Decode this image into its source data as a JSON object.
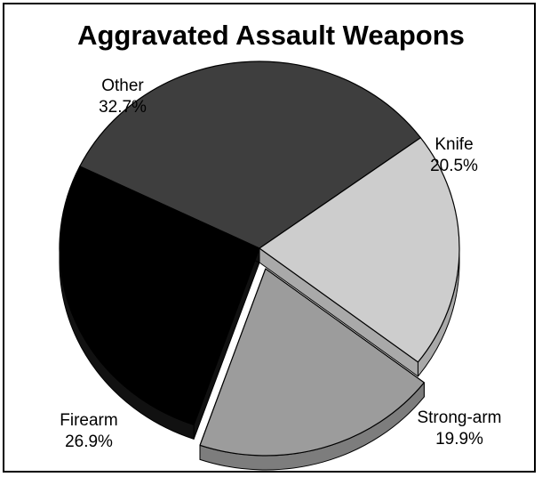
{
  "chart_data": {
    "type": "pie",
    "title": "Aggravated Assault Weapons",
    "slices": [
      {
        "label": "Other",
        "value": 32.7,
        "value_text": "32.7%",
        "color": "#3e3e3e",
        "side_color": "#262626"
      },
      {
        "label": "Knife",
        "value": 20.5,
        "value_text": "20.5%",
        "color": "#cdcdcd",
        "side_color": "#a9a9a9"
      },
      {
        "label": "Strong-arm",
        "value": 19.9,
        "value_text": "19.9%",
        "color": "#9c9c9c",
        "side_color": "#7d7d7d",
        "exploded": true
      },
      {
        "label": "Firearm",
        "value": 26.9,
        "value_text": "26.9%",
        "color": "#000000",
        "side_color": "#111111"
      }
    ],
    "style": "3d-exploded",
    "legend": "none"
  }
}
